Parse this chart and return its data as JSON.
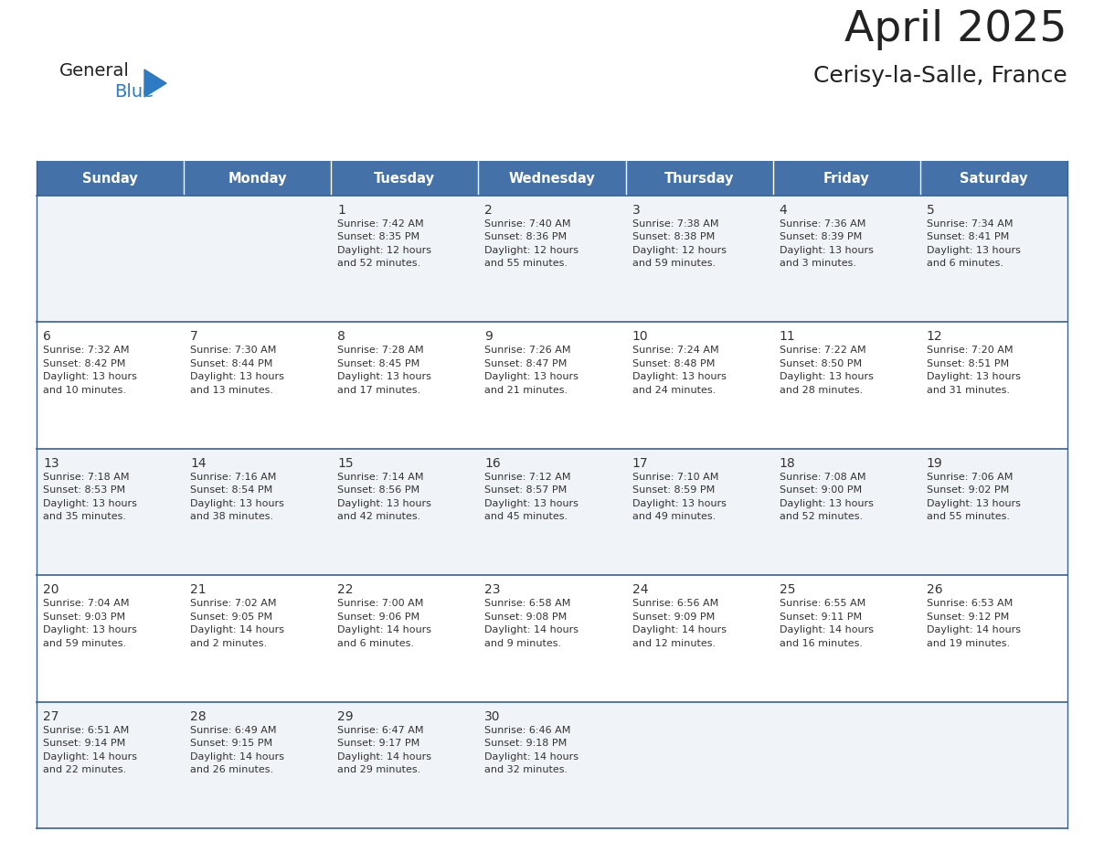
{
  "title": "April 2025",
  "subtitle": "Cerisy-la-Salle, France",
  "days_of_week": [
    "Sunday",
    "Monday",
    "Tuesday",
    "Wednesday",
    "Thursday",
    "Friday",
    "Saturday"
  ],
  "header_bg": "#4472A8",
  "header_text": "#FFFFFF",
  "row_bg_odd": "#F0F4F8",
  "row_bg_even": "#FFFFFF",
  "border_color": "#3A6090",
  "text_color": "#333333",
  "logo_general_color": "#222222",
  "logo_blue_color": "#2E7BC4",
  "logo_triangle_color": "#2E7BC4",
  "title_color": "#222222",
  "calendar_data": [
    [
      {
        "day": "",
        "lines": []
      },
      {
        "day": "",
        "lines": []
      },
      {
        "day": "1",
        "lines": [
          "Sunrise: 7:42 AM",
          "Sunset: 8:35 PM",
          "Daylight: 12 hours",
          "and 52 minutes."
        ]
      },
      {
        "day": "2",
        "lines": [
          "Sunrise: 7:40 AM",
          "Sunset: 8:36 PM",
          "Daylight: 12 hours",
          "and 55 minutes."
        ]
      },
      {
        "day": "3",
        "lines": [
          "Sunrise: 7:38 AM",
          "Sunset: 8:38 PM",
          "Daylight: 12 hours",
          "and 59 minutes."
        ]
      },
      {
        "day": "4",
        "lines": [
          "Sunrise: 7:36 AM",
          "Sunset: 8:39 PM",
          "Daylight: 13 hours",
          "and 3 minutes."
        ]
      },
      {
        "day": "5",
        "lines": [
          "Sunrise: 7:34 AM",
          "Sunset: 8:41 PM",
          "Daylight: 13 hours",
          "and 6 minutes."
        ]
      }
    ],
    [
      {
        "day": "6",
        "lines": [
          "Sunrise: 7:32 AM",
          "Sunset: 8:42 PM",
          "Daylight: 13 hours",
          "and 10 minutes."
        ]
      },
      {
        "day": "7",
        "lines": [
          "Sunrise: 7:30 AM",
          "Sunset: 8:44 PM",
          "Daylight: 13 hours",
          "and 13 minutes."
        ]
      },
      {
        "day": "8",
        "lines": [
          "Sunrise: 7:28 AM",
          "Sunset: 8:45 PM",
          "Daylight: 13 hours",
          "and 17 minutes."
        ]
      },
      {
        "day": "9",
        "lines": [
          "Sunrise: 7:26 AM",
          "Sunset: 8:47 PM",
          "Daylight: 13 hours",
          "and 21 minutes."
        ]
      },
      {
        "day": "10",
        "lines": [
          "Sunrise: 7:24 AM",
          "Sunset: 8:48 PM",
          "Daylight: 13 hours",
          "and 24 minutes."
        ]
      },
      {
        "day": "11",
        "lines": [
          "Sunrise: 7:22 AM",
          "Sunset: 8:50 PM",
          "Daylight: 13 hours",
          "and 28 minutes."
        ]
      },
      {
        "day": "12",
        "lines": [
          "Sunrise: 7:20 AM",
          "Sunset: 8:51 PM",
          "Daylight: 13 hours",
          "and 31 minutes."
        ]
      }
    ],
    [
      {
        "day": "13",
        "lines": [
          "Sunrise: 7:18 AM",
          "Sunset: 8:53 PM",
          "Daylight: 13 hours",
          "and 35 minutes."
        ]
      },
      {
        "day": "14",
        "lines": [
          "Sunrise: 7:16 AM",
          "Sunset: 8:54 PM",
          "Daylight: 13 hours",
          "and 38 minutes."
        ]
      },
      {
        "day": "15",
        "lines": [
          "Sunrise: 7:14 AM",
          "Sunset: 8:56 PM",
          "Daylight: 13 hours",
          "and 42 minutes."
        ]
      },
      {
        "day": "16",
        "lines": [
          "Sunrise: 7:12 AM",
          "Sunset: 8:57 PM",
          "Daylight: 13 hours",
          "and 45 minutes."
        ]
      },
      {
        "day": "17",
        "lines": [
          "Sunrise: 7:10 AM",
          "Sunset: 8:59 PM",
          "Daylight: 13 hours",
          "and 49 minutes."
        ]
      },
      {
        "day": "18",
        "lines": [
          "Sunrise: 7:08 AM",
          "Sunset: 9:00 PM",
          "Daylight: 13 hours",
          "and 52 minutes."
        ]
      },
      {
        "day": "19",
        "lines": [
          "Sunrise: 7:06 AM",
          "Sunset: 9:02 PM",
          "Daylight: 13 hours",
          "and 55 minutes."
        ]
      }
    ],
    [
      {
        "day": "20",
        "lines": [
          "Sunrise: 7:04 AM",
          "Sunset: 9:03 PM",
          "Daylight: 13 hours",
          "and 59 minutes."
        ]
      },
      {
        "day": "21",
        "lines": [
          "Sunrise: 7:02 AM",
          "Sunset: 9:05 PM",
          "Daylight: 14 hours",
          "and 2 minutes."
        ]
      },
      {
        "day": "22",
        "lines": [
          "Sunrise: 7:00 AM",
          "Sunset: 9:06 PM",
          "Daylight: 14 hours",
          "and 6 minutes."
        ]
      },
      {
        "day": "23",
        "lines": [
          "Sunrise: 6:58 AM",
          "Sunset: 9:08 PM",
          "Daylight: 14 hours",
          "and 9 minutes."
        ]
      },
      {
        "day": "24",
        "lines": [
          "Sunrise: 6:56 AM",
          "Sunset: 9:09 PM",
          "Daylight: 14 hours",
          "and 12 minutes."
        ]
      },
      {
        "day": "25",
        "lines": [
          "Sunrise: 6:55 AM",
          "Sunset: 9:11 PM",
          "Daylight: 14 hours",
          "and 16 minutes."
        ]
      },
      {
        "day": "26",
        "lines": [
          "Sunrise: 6:53 AM",
          "Sunset: 9:12 PM",
          "Daylight: 14 hours",
          "and 19 minutes."
        ]
      }
    ],
    [
      {
        "day": "27",
        "lines": [
          "Sunrise: 6:51 AM",
          "Sunset: 9:14 PM",
          "Daylight: 14 hours",
          "and 22 minutes."
        ]
      },
      {
        "day": "28",
        "lines": [
          "Sunrise: 6:49 AM",
          "Sunset: 9:15 PM",
          "Daylight: 14 hours",
          "and 26 minutes."
        ]
      },
      {
        "day": "29",
        "lines": [
          "Sunrise: 6:47 AM",
          "Sunset: 9:17 PM",
          "Daylight: 14 hours",
          "and 29 minutes."
        ]
      },
      {
        "day": "30",
        "lines": [
          "Sunrise: 6:46 AM",
          "Sunset: 9:18 PM",
          "Daylight: 14 hours",
          "and 32 minutes."
        ]
      },
      {
        "day": "",
        "lines": []
      },
      {
        "day": "",
        "lines": []
      },
      {
        "day": "",
        "lines": []
      }
    ]
  ]
}
